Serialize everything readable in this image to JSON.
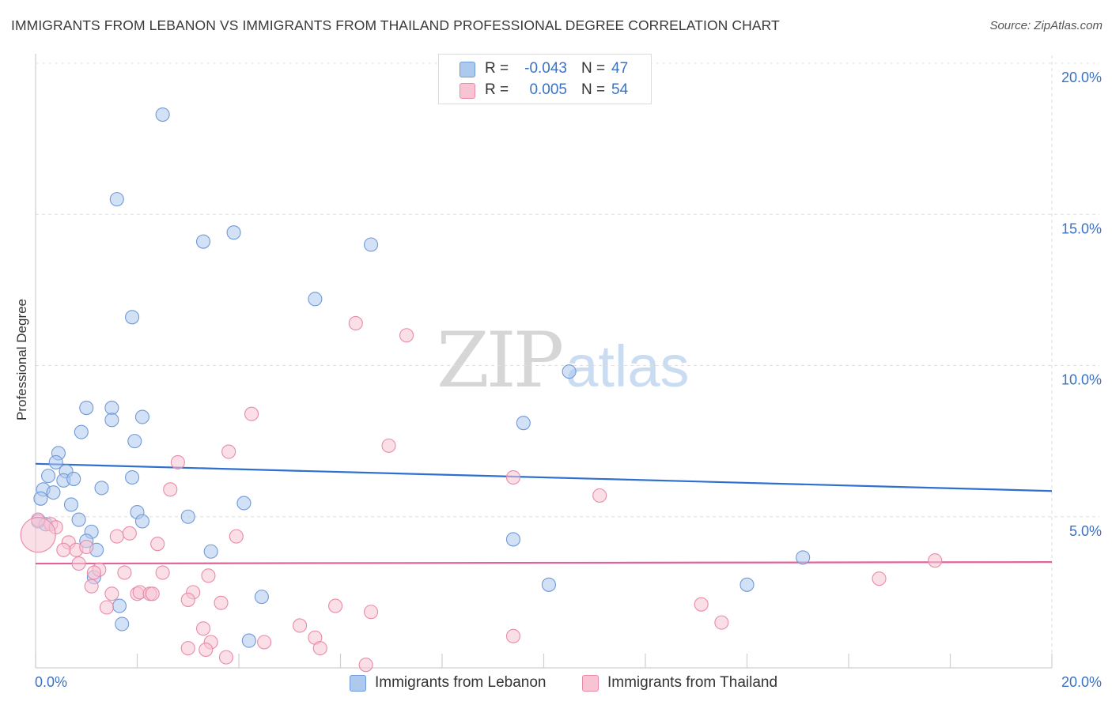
{
  "title": "IMMIGRANTS FROM LEBANON VS IMMIGRANTS FROM THAILAND PROFESSIONAL DEGREE CORRELATION CHART",
  "source": "Source: ZipAtlas.com",
  "watermark": {
    "zip": "ZIP",
    "atlas": "atlas"
  },
  "legend": {
    "rows": [
      {
        "r_label": "R =",
        "r_value": "-0.043",
        "n_label": "N =",
        "n_value": "47",
        "color": "#aec9ee",
        "border": "#6f9ad8"
      },
      {
        "r_label": "R =",
        "r_value": "0.005",
        "n_label": "N =",
        "n_value": "54",
        "color": "#f8c4d4",
        "border": "#e98aa9"
      }
    ]
  },
  "bottom_legend": [
    {
      "label": "Immigrants from Lebanon",
      "color": "#aec9ee",
      "border": "#6f9ad8"
    },
    {
      "label": "Immigrants from Thailand",
      "color": "#f8c4d4",
      "border": "#e98aa9"
    }
  ],
  "chart_data": {
    "type": "scatter",
    "title": "IMMIGRANTS FROM LEBANON VS IMMIGRANTS FROM THAILAND PROFESSIONAL DEGREE CORRELATION CHART",
    "xlabel": "",
    "ylabel": "Professional Degree",
    "xlim": [
      0,
      20
    ],
    "ylim": [
      0,
      20
    ],
    "x_tick_labels": [
      "0.0%",
      "20.0%"
    ],
    "y_ticks": [
      5,
      10,
      15,
      20
    ],
    "y_tick_labels": [
      "5.0%",
      "10.0%",
      "15.0%",
      "20.0%"
    ],
    "grid": true,
    "series": [
      {
        "name": "Immigrants from Lebanon",
        "color": "#aec9ee",
        "stroke": "#6f9ad8",
        "line_color": "#2f6fcf",
        "trend": {
          "x": [
            0,
            20
          ],
          "y": [
            6.75,
            5.85
          ]
        },
        "points": [
          [
            2.5,
            18.3
          ],
          [
            1.6,
            15.5
          ],
          [
            3.3,
            14.1
          ],
          [
            3.9,
            14.4
          ],
          [
            6.6,
            14.0
          ],
          [
            5.5,
            12.2
          ],
          [
            1.9,
            11.6
          ],
          [
            10.5,
            9.8
          ],
          [
            1.0,
            8.6
          ],
          [
            1.5,
            8.6
          ],
          [
            2.1,
            8.3
          ],
          [
            1.5,
            8.2
          ],
          [
            9.6,
            8.1
          ],
          [
            0.9,
            7.8
          ],
          [
            1.95,
            7.5
          ],
          [
            0.45,
            7.1
          ],
          [
            0.4,
            6.8
          ],
          [
            0.25,
            6.35
          ],
          [
            0.6,
            6.5
          ],
          [
            0.55,
            6.2
          ],
          [
            0.75,
            6.25
          ],
          [
            1.9,
            6.3
          ],
          [
            0.15,
            5.9
          ],
          [
            0.35,
            5.8
          ],
          [
            1.3,
            5.95
          ],
          [
            0.1,
            5.6
          ],
          [
            0.7,
            5.4
          ],
          [
            4.1,
            5.45
          ],
          [
            2.0,
            5.15
          ],
          [
            3.0,
            5.0
          ],
          [
            0.85,
            4.9
          ],
          [
            2.1,
            4.85
          ],
          [
            0.05,
            4.85
          ],
          [
            1.1,
            4.5
          ],
          [
            0.2,
            4.75
          ],
          [
            1.0,
            4.2
          ],
          [
            9.4,
            4.25
          ],
          [
            1.2,
            3.9
          ],
          [
            3.45,
            3.85
          ],
          [
            15.1,
            3.65
          ],
          [
            1.15,
            3.0
          ],
          [
            10.1,
            2.75
          ],
          [
            14.0,
            2.75
          ],
          [
            4.45,
            2.35
          ],
          [
            1.65,
            2.05
          ],
          [
            1.7,
            1.45
          ],
          [
            4.2,
            0.9
          ]
        ]
      },
      {
        "name": "Immigrants from Thailand",
        "color": "#f8c4d4",
        "stroke": "#e98aa9",
        "line_color": "#e0649a",
        "trend": {
          "x": [
            0,
            20
          ],
          "y": [
            3.45,
            3.5
          ]
        },
        "points": [
          [
            6.3,
            11.4
          ],
          [
            7.3,
            11.0
          ],
          [
            4.25,
            8.4
          ],
          [
            6.95,
            7.35
          ],
          [
            3.8,
            7.15
          ],
          [
            2.8,
            6.8
          ],
          [
            9.4,
            6.3
          ],
          [
            2.65,
            5.9
          ],
          [
            11.1,
            5.7
          ],
          [
            0.05,
            4.9
          ],
          [
            0.3,
            4.75
          ],
          [
            0.4,
            4.65
          ],
          [
            1.6,
            4.35
          ],
          [
            1.85,
            4.45
          ],
          [
            3.95,
            4.35
          ],
          [
            0.65,
            4.15
          ],
          [
            2.4,
            4.1
          ],
          [
            0.8,
            3.9
          ],
          [
            0.55,
            3.9
          ],
          [
            1.0,
            4.0
          ],
          [
            0.85,
            3.45
          ],
          [
            17.7,
            3.55
          ],
          [
            1.25,
            3.25
          ],
          [
            1.15,
            3.15
          ],
          [
            1.75,
            3.15
          ],
          [
            2.5,
            3.15
          ],
          [
            3.4,
            3.05
          ],
          [
            16.6,
            2.95
          ],
          [
            1.1,
            2.7
          ],
          [
            1.5,
            2.45
          ],
          [
            2.0,
            2.45
          ],
          [
            2.05,
            2.5
          ],
          [
            2.25,
            2.45
          ],
          [
            2.3,
            2.45
          ],
          [
            3.1,
            2.5
          ],
          [
            3.0,
            2.25
          ],
          [
            3.65,
            2.15
          ],
          [
            13.1,
            2.1
          ],
          [
            5.9,
            2.05
          ],
          [
            6.6,
            1.85
          ],
          [
            1.4,
            2.0
          ],
          [
            13.5,
            1.5
          ],
          [
            5.2,
            1.4
          ],
          [
            3.3,
            1.3
          ],
          [
            5.5,
            1.0
          ],
          [
            9.4,
            1.05
          ],
          [
            3.45,
            0.85
          ],
          [
            4.5,
            0.85
          ],
          [
            3.0,
            0.65
          ],
          [
            3.35,
            0.6
          ],
          [
            5.6,
            0.65
          ],
          [
            3.75,
            0.35
          ],
          [
            6.5,
            0.1
          ],
          [
            0.05,
            4.4
          ]
        ]
      }
    ]
  }
}
